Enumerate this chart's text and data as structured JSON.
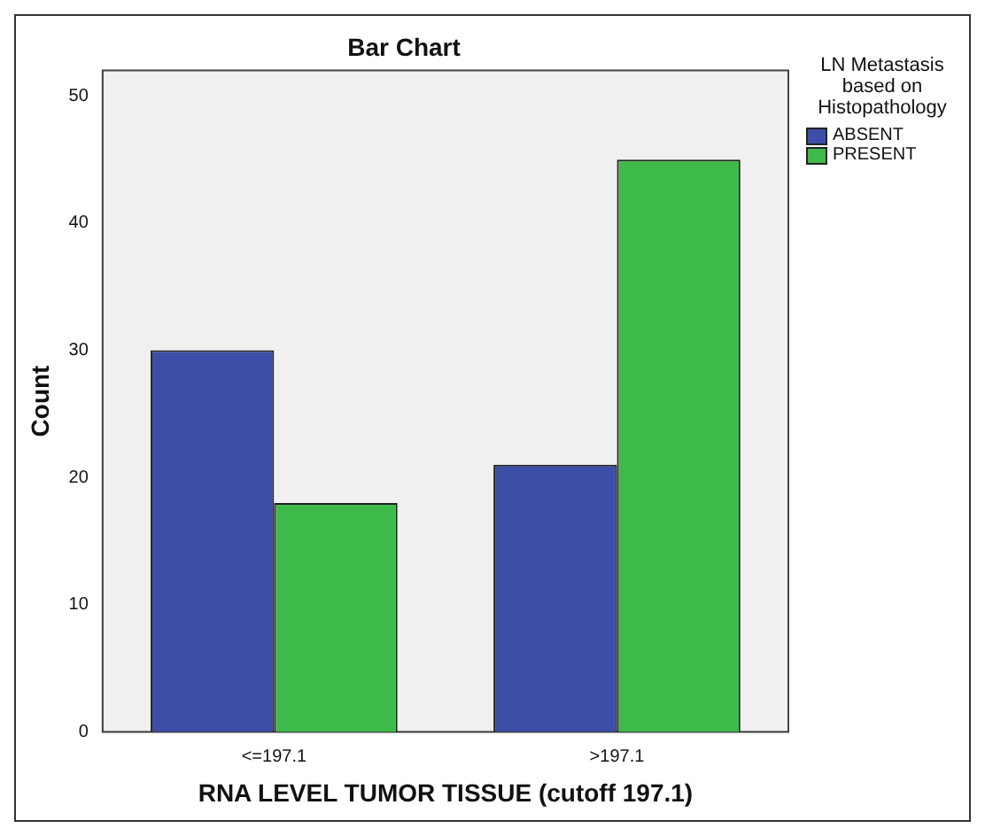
{
  "chart_data": {
    "type": "bar",
    "title": "Bar Chart",
    "xlabel": "RNA LEVEL TUMOR TISSUE (cutoff 197.1)",
    "ylabel": "Count",
    "legend_title": "LN Metastasis based on Histopathology",
    "categories": [
      "<=197.1",
      ">197.1"
    ],
    "series": [
      {
        "name": "ABSENT",
        "color": "#3d4ea6",
        "values": [
          30,
          21
        ]
      },
      {
        "name": "PRESENT",
        "color": "#3dba4a",
        "values": [
          18,
          45
        ]
      }
    ],
    "ylim": [
      0,
      52
    ],
    "yticks": [
      0,
      10,
      20,
      30,
      40,
      50
    ],
    "grid": false,
    "legend": "top right"
  }
}
